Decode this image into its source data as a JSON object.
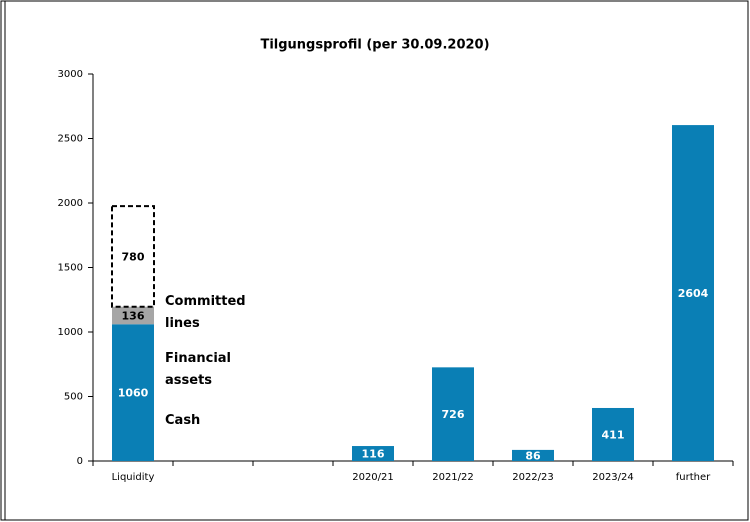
{
  "chart_data": {
    "type": "bar",
    "stacked": true,
    "title": "Tilgungsprofil (per 30.09.2020)",
    "categories": [
      "Liquidity",
      null,
      null,
      "2020/21",
      "2021/22",
      "2022/23",
      "2023/24",
      "further"
    ],
    "series": [
      {
        "name": "Cash",
        "color": "#0a7fb5",
        "label_color": "#ffffff",
        "values": [
          1060,
          null,
          null,
          null,
          null,
          null,
          null,
          null
        ]
      },
      {
        "name": "Financial assets",
        "color": "#a6a6a6",
        "label_color": "#000000",
        "values": [
          136,
          null,
          null,
          null,
          null,
          null,
          null,
          null
        ]
      },
      {
        "name": "Committed lines",
        "color": "#000000",
        "dashed": true,
        "label_color": "#000000",
        "values": [
          780,
          null,
          null,
          null,
          null,
          null,
          null,
          null
        ]
      },
      {
        "color": "#0a7fb5",
        "label_color": "#ffffff",
        "values": [
          null,
          null,
          null,
          116,
          726,
          86,
          411,
          2604
        ]
      }
    ],
    "ylim": [
      0,
      3000
    ],
    "yticks": [
      0,
      500,
      1000,
      1500,
      2000,
      2500,
      3000
    ],
    "grid": false
  }
}
